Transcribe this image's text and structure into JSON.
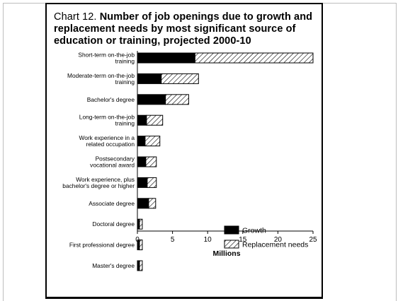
{
  "chart_data": {
    "type": "bar",
    "stacked": true,
    "orientation": "horizontal",
    "title_prefix": "Chart 12.",
    "title": "Number of job openings due to growth and replacement needs by most significant source of education or training, projected 2000-10",
    "xlabel": "Millions",
    "ylabel": "",
    "xlim": [
      0,
      25
    ],
    "xticks": [
      "0",
      "5",
      "10",
      "15",
      "20",
      "25"
    ],
    "grid": false,
    "legend_position": "bottom-right",
    "categories": [
      [
        "Short-term on-the-job",
        "training"
      ],
      [
        "Moderate-term on-the-job",
        "training"
      ],
      [
        "Bachelor's degree"
      ],
      [
        "Long-term on-the-job",
        "training"
      ],
      [
        "Work experience in a",
        "related occupation"
      ],
      [
        "Postsecondary",
        "vocational award"
      ],
      [
        "Work experience, plus",
        "bachelor's degree or higher"
      ],
      [
        "Associate degree"
      ],
      [
        "Doctoral degree"
      ],
      [
        "First professional degree"
      ],
      [
        "Master's degree"
      ]
    ],
    "series": [
      {
        "name": "Growth",
        "color": "#000000",
        "pattern": "solid",
        "values": [
          8.2,
          3.4,
          4.0,
          1.3,
          1.1,
          1.2,
          1.4,
          1.6,
          0.3,
          0.3,
          0.3
        ]
      },
      {
        "name": "Replacement needs",
        "color": "#ffffff",
        "pattern": "diagonal-hatch",
        "values": [
          16.8,
          5.3,
          3.3,
          2.3,
          2.1,
          1.5,
          1.3,
          1.0,
          0.4,
          0.4,
          0.4
        ]
      }
    ]
  }
}
